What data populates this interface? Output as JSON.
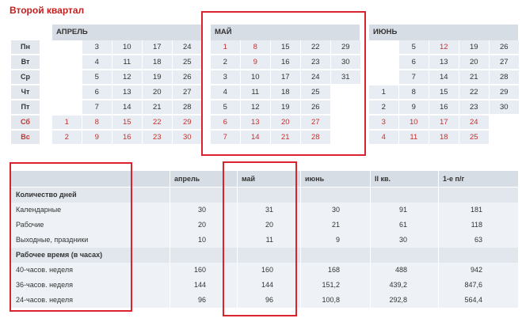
{
  "title": "Второй квартал",
  "days": [
    {
      "label": "Пн",
      "weekend": false
    },
    {
      "label": "Вт",
      "weekend": false
    },
    {
      "label": "Ср",
      "weekend": false
    },
    {
      "label": "Чт",
      "weekend": false
    },
    {
      "label": "Пт",
      "weekend": false
    },
    {
      "label": "Сб",
      "weekend": true
    },
    {
      "label": "Вс",
      "weekend": true
    }
  ],
  "months": [
    {
      "name": "АПРЕЛЬ",
      "rows": [
        [
          "",
          "3",
          "10",
          "17",
          "24"
        ],
        [
          "",
          "4",
          "11",
          "18",
          "25"
        ],
        [
          "",
          "5",
          "12",
          "19",
          "26"
        ],
        [
          "",
          "6",
          "13",
          "20",
          "27"
        ],
        [
          "",
          "7",
          "14",
          "21",
          "28"
        ],
        [
          "1",
          "8",
          "15",
          "22",
          "29"
        ],
        [
          "2",
          "9",
          "16",
          "23",
          "30"
        ]
      ],
      "highlight": [
        [],
        [],
        [],
        [],
        [],
        [],
        []
      ]
    },
    {
      "name": "МАЙ",
      "rows": [
        [
          "1",
          "8",
          "15",
          "22",
          "29"
        ],
        [
          "2",
          "9",
          "16",
          "23",
          "30"
        ],
        [
          "3",
          "10",
          "17",
          "24",
          "31"
        ],
        [
          "4",
          "11",
          "18",
          "25",
          ""
        ],
        [
          "5",
          "12",
          "19",
          "26",
          ""
        ],
        [
          "6",
          "13",
          "20",
          "27",
          ""
        ],
        [
          "7",
          "14",
          "21",
          "28",
          ""
        ]
      ],
      "highlight": [
        [
          "1",
          "8"
        ],
        [
          "9"
        ],
        [],
        [],
        [],
        [],
        []
      ]
    },
    {
      "name": "ИЮНЬ",
      "rows": [
        [
          "",
          "5",
          "12",
          "19",
          "26"
        ],
        [
          "",
          "6",
          "13",
          "20",
          "27"
        ],
        [
          "",
          "7",
          "14",
          "21",
          "28"
        ],
        [
          "1",
          "8",
          "15",
          "22",
          "29"
        ],
        [
          "2",
          "9",
          "16",
          "23",
          "30"
        ],
        [
          "3",
          "10",
          "17",
          "24",
          ""
        ],
        [
          "4",
          "11",
          "18",
          "25",
          ""
        ]
      ],
      "highlight": [
        [
          "12"
        ],
        [],
        [],
        [],
        [],
        [],
        []
      ]
    }
  ],
  "summary": {
    "headers": [
      "",
      "апрель",
      "май",
      "июнь",
      "II кв.",
      "1-е п/г"
    ],
    "rows": [
      {
        "type": "section",
        "label": "Количество дней",
        "values": [
          "",
          "",
          "",
          "",
          ""
        ]
      },
      {
        "type": "data",
        "label": "Календарные",
        "values": [
          "30",
          "31",
          "30",
          "91",
          "181"
        ]
      },
      {
        "type": "data",
        "label": "Рабочие",
        "values": [
          "20",
          "20",
          "21",
          "61",
          "118"
        ]
      },
      {
        "type": "data",
        "label": "Выходные, праздники",
        "values": [
          "10",
          "11",
          "9",
          "30",
          "63"
        ]
      },
      {
        "type": "section",
        "label": "Рабочее время (в часах)",
        "values": [
          "",
          "",
          "",
          "",
          ""
        ]
      },
      {
        "type": "data",
        "label": "40-часов. неделя",
        "values": [
          "160",
          "160",
          "168",
          "488",
          "942"
        ]
      },
      {
        "type": "data",
        "label": "36-часов. неделя",
        "values": [
          "144",
          "144",
          "151,2",
          "439,2",
          "847,6"
        ]
      },
      {
        "type": "data",
        "label": "24-часов. неделя",
        "values": [
          "96",
          "96",
          "100,8",
          "292,8",
          "564,4"
        ]
      }
    ]
  },
  "colors": {
    "accent": "#c21f1f",
    "weekend": "#c7302f",
    "highlight_box": "#d9232e",
    "header_bg": "#d7dde4",
    "cell_bg": "#e7edf3"
  }
}
